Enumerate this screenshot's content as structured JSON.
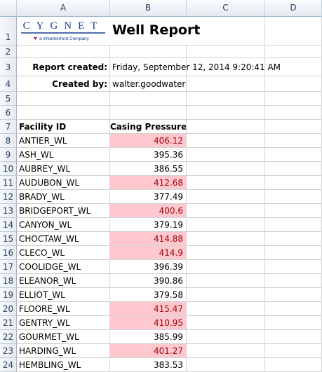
{
  "columns": [
    "A",
    "B",
    "C",
    "D"
  ],
  "rows": [
    "1",
    "2",
    "3",
    "4",
    "5",
    "6",
    "7",
    "8",
    "9",
    "10",
    "11",
    "12",
    "13",
    "14",
    "15",
    "16",
    "17",
    "18",
    "19",
    "20",
    "21",
    "22",
    "23",
    "24"
  ],
  "logo": {
    "brand": "CYGNET",
    "tagline": "a Weatherford Company"
  },
  "report": {
    "title": "Well Report",
    "created_label": "Report created:",
    "created_value": "Friday, September 12, 2014 9:20:41 AM",
    "by_label": "Created by:",
    "by_value": "walter.goodwater"
  },
  "table": {
    "headers": [
      "Facility ID",
      "Casing Pressure"
    ],
    "rows": [
      {
        "id": "ANTIER_WL",
        "value": "406.12",
        "highlight": true
      },
      {
        "id": "ASH_WL",
        "value": "395.36",
        "highlight": false
      },
      {
        "id": "AUBREY_WL",
        "value": "386.55",
        "highlight": false
      },
      {
        "id": "AUDUBON_WL",
        "value": "412.68",
        "highlight": true
      },
      {
        "id": "BRADY_WL",
        "value": "377.49",
        "highlight": false
      },
      {
        "id": "BRIDGEPORT_WL",
        "value": "400.6",
        "highlight": true
      },
      {
        "id": "CANYON_WL",
        "value": "379.19",
        "highlight": false
      },
      {
        "id": "CHOCTAW_WL",
        "value": "414.88",
        "highlight": true
      },
      {
        "id": "CLECO_WL",
        "value": "414.9",
        "highlight": true
      },
      {
        "id": "COOLIDGE_WL",
        "value": "396.39",
        "highlight": false
      },
      {
        "id": "ELEANOR_WL",
        "value": "390.86",
        "highlight": false
      },
      {
        "id": "ELLIOT_WL",
        "value": "379.58",
        "highlight": false
      },
      {
        "id": "FLOORE_WL",
        "value": "415.47",
        "highlight": true
      },
      {
        "id": "GENTRY_WL",
        "value": "410.95",
        "highlight": true
      },
      {
        "id": "GOURMET_WL",
        "value": "385.99",
        "highlight": false
      },
      {
        "id": "HARDING_WL",
        "value": "401.27",
        "highlight": true
      },
      {
        "id": "HEMBLING_WL",
        "value": "383.53",
        "highlight": false
      }
    ]
  },
  "colors": {
    "highlight_bg": "#ffc7ce",
    "highlight_text": "#9c0006",
    "logo_blue": "#1a3f8f",
    "logo_red": "#c8102e"
  }
}
